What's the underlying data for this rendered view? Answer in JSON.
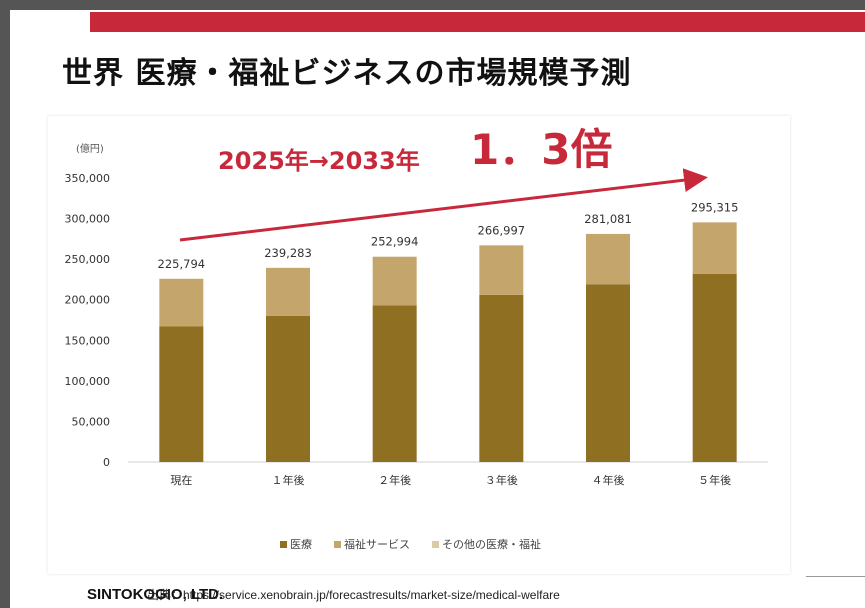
{
  "page": {
    "title": "世界 医療・福祉ビジネスの市場規模予測",
    "footer_company": "SINTOKOGIO, LTD.",
    "footer_source": "出典：https://service.xenobrain.jp/forecastresults/market-size/medical-welfare"
  },
  "colors": {
    "accent_red": "#c8293a",
    "iryo": "#8f6f22",
    "fukushi": "#c4a56b",
    "sonota": "#d9cba3"
  },
  "chart_data": {
    "type": "bar",
    "stacked": true,
    "annotation_main": "2025年→2033年",
    "annotation_big": "1．3倍",
    "ylabel": "(億円)",
    "ylim": [
      0,
      350000
    ],
    "yticks": [
      0,
      50000,
      100000,
      150000,
      200000,
      250000,
      300000,
      350000
    ],
    "ytick_labels": [
      "0",
      "50,000",
      "100,000",
      "150,000",
      "200,000",
      "250,000",
      "300,000",
      "350,000"
    ],
    "categories": [
      "現在",
      "１年後",
      "２年後",
      "３年後",
      "４年後",
      "５年後"
    ],
    "series": [
      {
        "name": "医療",
        "values": [
          167000,
          180000,
          193000,
          206000,
          219000,
          232000
        ]
      },
      {
        "name": "福祉サービス",
        "values": [
          58794,
          59283,
          59994,
          60997,
          62081,
          63315
        ]
      },
      {
        "name": "その他の医療・福祉",
        "values": [
          0,
          0,
          0,
          0,
          0,
          0
        ]
      }
    ],
    "totals": [
      225794,
      239283,
      252994,
      266997,
      281081,
      295315
    ],
    "total_labels": [
      "225,794",
      "239,283",
      "252,994",
      "266,997",
      "281,081",
      "295,315"
    ],
    "legend_position": "bottom",
    "grid": false
  }
}
